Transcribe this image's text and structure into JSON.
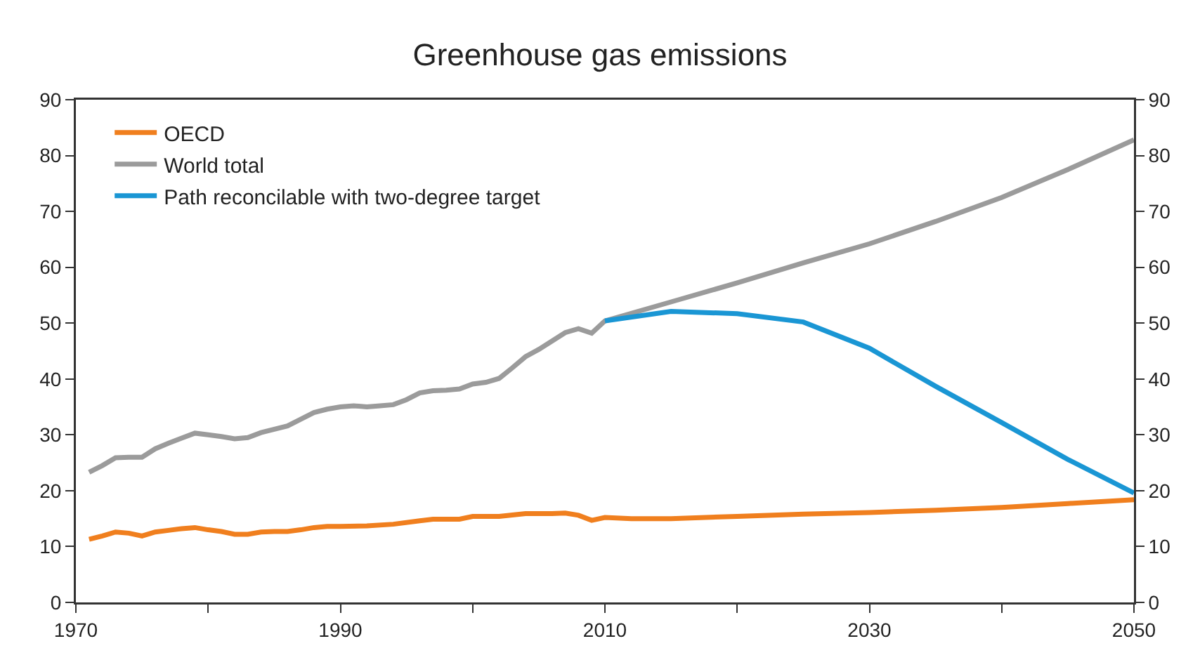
{
  "chart_data": {
    "type": "line",
    "title": "Greenhouse gas emissions",
    "xlim": [
      1970,
      2050
    ],
    "xticks": [
      1970,
      {
        "value": 1980,
        "label": null
      },
      1990,
      {
        "value": 2000,
        "label": null
      },
      2010,
      {
        "value": 2020,
        "label": null
      },
      2030,
      {
        "value": 2040,
        "label": null
      },
      2050
    ],
    "ylim": [
      0,
      90
    ],
    "yticks": [
      0,
      10,
      20,
      30,
      40,
      50,
      60,
      70,
      80,
      90
    ],
    "y2lim": [
      0,
      90
    ],
    "y2ticks": [
      0,
      10,
      20,
      30,
      40,
      50,
      60,
      70,
      80,
      90
    ],
    "grid": false,
    "legend": "top left",
    "marker": "none",
    "line_style": "solid",
    "series": [
      {
        "name": "OECD",
        "color": "#f07f1e",
        "x": [
          1971,
          1972,
          1973,
          1974,
          1975,
          1976,
          1977,
          1978,
          1979,
          1980,
          1981,
          1982,
          1983,
          1984,
          1985,
          1986,
          1987,
          1988,
          1989,
          1990,
          1992,
          1994,
          1996,
          1997,
          1999,
          2000,
          2002,
          2004,
          2006,
          2007,
          2008,
          2009,
          2010,
          2012,
          2015,
          2020,
          2025,
          2030,
          2035,
          2040,
          2045,
          2050
        ],
        "values": [
          11.3,
          11.9,
          12.6,
          12.4,
          11.9,
          12.6,
          12.9,
          13.2,
          13.4,
          13,
          12.7,
          12.2,
          12.2,
          12.6,
          12.7,
          12.7,
          13,
          13.4,
          13.6,
          13.6,
          13.7,
          14,
          14.6,
          14.9,
          14.9,
          15.4,
          15.4,
          15.9,
          15.9,
          16,
          15.6,
          14.7,
          15.2,
          15,
          15,
          15.4,
          15.8,
          16.1,
          16.5,
          17,
          17.7,
          18.4
        ]
      },
      {
        "name": "World total",
        "color": "#9b9b9b",
        "x": [
          1971,
          1972,
          1973,
          1974,
          1975,
          1976,
          1977,
          1978,
          1979,
          1980,
          1981,
          1982,
          1983,
          1984,
          1985,
          1986,
          1987,
          1988,
          1989,
          1990,
          1991,
          1992,
          1993,
          1994,
          1995,
          1996,
          1997,
          1998,
          1999,
          2000,
          2001,
          2002,
          2003,
          2004,
          2005,
          2006,
          2007,
          2008,
          2009,
          2010,
          2015,
          2020,
          2025,
          2030,
          2035,
          2040,
          2045,
          2050
        ],
        "values": [
          23.3,
          24.5,
          25.9,
          26,
          26,
          27.5,
          28.5,
          29.4,
          30.3,
          30,
          29.7,
          29.3,
          29.5,
          30.4,
          31,
          31.6,
          32.8,
          34,
          34.6,
          35,
          35.2,
          35,
          35.2,
          35.4,
          36.3,
          37.5,
          37.9,
          38,
          38.2,
          39.1,
          39.4,
          40.1,
          42,
          44,
          45.3,
          46.8,
          48.3,
          49,
          48.2,
          50.4,
          53.8,
          57.2,
          60.8,
          64.2,
          68.2,
          72.5,
          77.5,
          82.8
        ]
      },
      {
        "name": "Path reconcilable with two-degree target",
        "color": "#1a96d4",
        "x": [
          2010,
          2015,
          2020,
          2025,
          2030,
          2035,
          2040,
          2045,
          2050
        ],
        "values": [
          50.4,
          52.1,
          51.7,
          50.2,
          45.5,
          38.7,
          32.2,
          25.6,
          19.6
        ]
      }
    ]
  }
}
